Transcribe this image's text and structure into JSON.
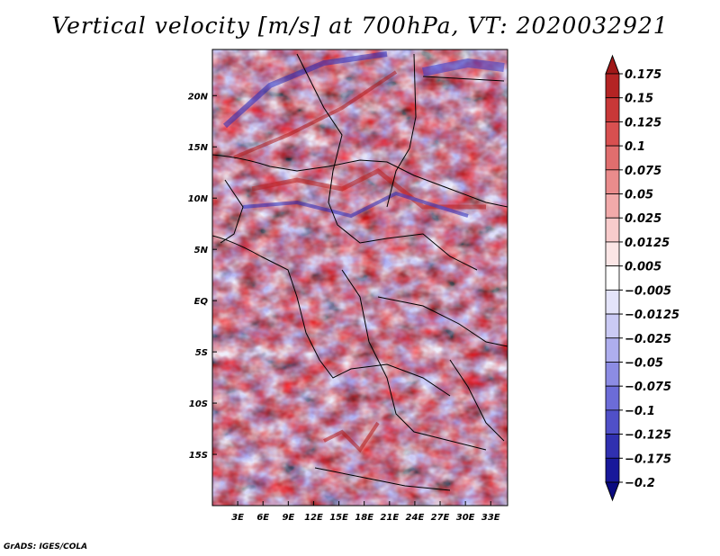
{
  "title": "Vertical velocity [m/s] at 700hPa, VT: 2020032921",
  "credit": "GrADS: IGES/COLA",
  "map": {
    "lon_range": [
      0,
      35
    ],
    "lat_range": [
      -20,
      24.5
    ],
    "x_ticks": [
      {
        "value": 3,
        "label": "3E"
      },
      {
        "value": 6,
        "label": "6E"
      },
      {
        "value": 9,
        "label": "9E"
      },
      {
        "value": 12,
        "label": "12E"
      },
      {
        "value": 15,
        "label": "15E"
      },
      {
        "value": 18,
        "label": "18E"
      },
      {
        "value": 21,
        "label": "21E"
      },
      {
        "value": 24,
        "label": "24E"
      },
      {
        "value": 27,
        "label": "27E"
      },
      {
        "value": 30,
        "label": "30E"
      },
      {
        "value": 33,
        "label": "33E"
      }
    ],
    "y_ticks": [
      {
        "value": 20,
        "label": "20N"
      },
      {
        "value": 15,
        "label": "15N"
      },
      {
        "value": 10,
        "label": "10N"
      },
      {
        "value": 5,
        "label": "5N"
      },
      {
        "value": 0,
        "label": "EQ"
      },
      {
        "value": -5,
        "label": "5S"
      },
      {
        "value": -10,
        "label": "10S"
      },
      {
        "value": -15,
        "label": "15S"
      }
    ]
  },
  "colorbar": {
    "levels": [
      "0.175",
      "0.15",
      "0.125",
      "0.1",
      "0.075",
      "0.05",
      "0.025",
      "0.0125",
      "0.005",
      "-0.005",
      "-0.0125",
      "-0.025",
      "-0.05",
      "-0.075",
      "-0.1",
      "-0.125",
      "-0.175",
      "-0.2"
    ],
    "colors": [
      "#a01818",
      "#b42424",
      "#c83838",
      "#d85050",
      "#e06e6e",
      "#ea8c8c",
      "#f2aaaa",
      "#f8cccc",
      "#fbe6e6",
      "#ffffff",
      "#e4e4fa",
      "#cacaf4",
      "#aeaeee",
      "#8c8ce4",
      "#6c6cd8",
      "#5050c8",
      "#3030b0",
      "#18189a",
      "#0a0a80"
    ]
  },
  "colors": {
    "positive": "#c83838",
    "negative": "#3a3ac8",
    "neutral": "#ffffff"
  }
}
